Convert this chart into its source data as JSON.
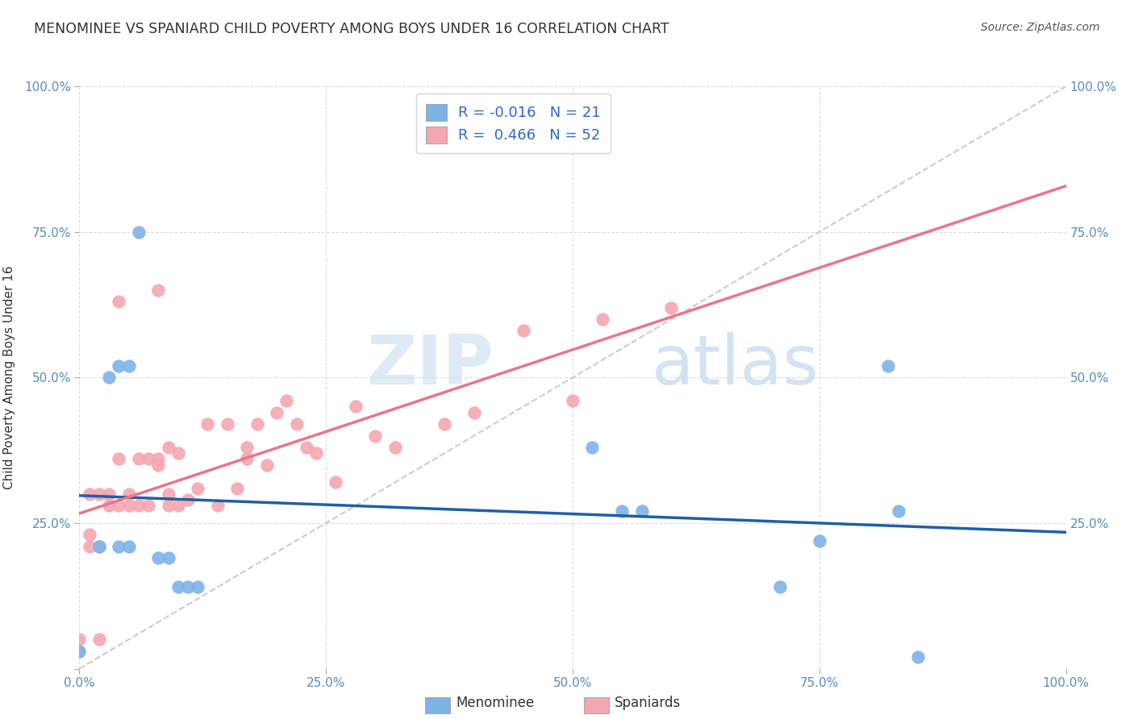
{
  "title": "MENOMINEE VS SPANIARD CHILD POVERTY AMONG BOYS UNDER 16 CORRELATION CHART",
  "source": "Source: ZipAtlas.com",
  "ylabel": "Child Poverty Among Boys Under 16",
  "xlim": [
    0,
    1
  ],
  "ylim": [
    0,
    1
  ],
  "xticks": [
    0,
    0.25,
    0.5,
    0.75,
    1.0
  ],
  "yticks": [
    0,
    0.25,
    0.5,
    0.75,
    1.0
  ],
  "xticklabels": [
    "0.0%",
    "25.0%",
    "50.0%",
    "75.0%",
    "100.0%"
  ],
  "left_yticklabels": [
    "",
    "25.0%",
    "50.0%",
    "75.0%",
    "100.0%"
  ],
  "right_yticklabels": [
    "",
    "25.0%",
    "50.0%",
    "75.0%",
    "100.0%"
  ],
  "menominee_color": "#7EB3E8",
  "menominee_edge": "#5A9AD4",
  "spaniards_color": "#F4A7B0",
  "spaniards_edge": "#E07080",
  "menominee_R": -0.016,
  "menominee_N": 21,
  "spaniards_R": 0.466,
  "spaniards_N": 52,
  "menominee_line_color": "#1F5FA6",
  "spaniards_line_color": "#E8768A",
  "diagonal_color": "#cccccc",
  "menominee_x": [
    0.0,
    0.02,
    0.03,
    0.04,
    0.04,
    0.05,
    0.05,
    0.06,
    0.08,
    0.09,
    0.1,
    0.11,
    0.12,
    0.52,
    0.55,
    0.57,
    0.71,
    0.75,
    0.82,
    0.83,
    0.85
  ],
  "menominee_y": [
    0.03,
    0.21,
    0.5,
    0.52,
    0.21,
    0.52,
    0.21,
    0.75,
    0.19,
    0.19,
    0.14,
    0.14,
    0.14,
    0.38,
    0.27,
    0.27,
    0.14,
    0.22,
    0.52,
    0.27,
    0.02
  ],
  "spaniards_x": [
    0.0,
    0.0,
    0.01,
    0.01,
    0.01,
    0.02,
    0.02,
    0.02,
    0.03,
    0.03,
    0.04,
    0.04,
    0.04,
    0.05,
    0.05,
    0.06,
    0.06,
    0.07,
    0.07,
    0.08,
    0.08,
    0.08,
    0.09,
    0.09,
    0.09,
    0.1,
    0.1,
    0.11,
    0.12,
    0.13,
    0.14,
    0.15,
    0.16,
    0.17,
    0.17,
    0.18,
    0.19,
    0.2,
    0.21,
    0.22,
    0.23,
    0.24,
    0.26,
    0.28,
    0.3,
    0.32,
    0.37,
    0.4,
    0.45,
    0.5,
    0.53,
    0.6
  ],
  "spaniards_y": [
    0.03,
    0.05,
    0.21,
    0.23,
    0.3,
    0.05,
    0.21,
    0.3,
    0.3,
    0.28,
    0.28,
    0.36,
    0.63,
    0.3,
    0.28,
    0.28,
    0.36,
    0.28,
    0.36,
    0.35,
    0.36,
    0.65,
    0.28,
    0.3,
    0.38,
    0.28,
    0.37,
    0.29,
    0.31,
    0.42,
    0.28,
    0.42,
    0.31,
    0.36,
    0.38,
    0.42,
    0.35,
    0.44,
    0.46,
    0.42,
    0.38,
    0.37,
    0.32,
    0.45,
    0.4,
    0.38,
    0.42,
    0.44,
    0.58,
    0.46,
    0.6,
    0.62
  ],
  "watermark_zip": "ZIP",
  "watermark_atlas": "atlas",
  "background_color": "#ffffff",
  "grid_color": "#dddddd",
  "tick_color": "#5B8DB8",
  "legend_label_color": "#333333",
  "legend_value_color": "#3366CC",
  "title_color": "#333333",
  "source_color": "#555555"
}
